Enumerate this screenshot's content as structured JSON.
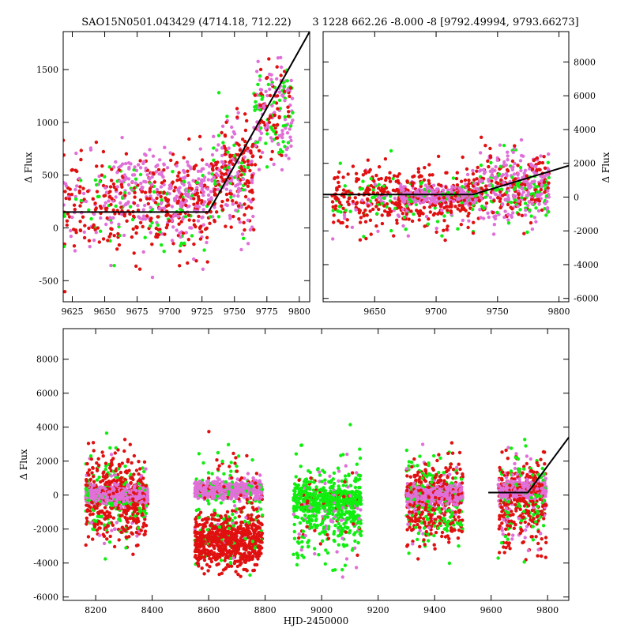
{
  "chart_data": [
    {
      "type": "scatter",
      "panel": "top-left",
      "title": "SAO15N0501.043429 (4714.18, 712.22)",
      "xlabel": "",
      "ylabel": "Δ Flux",
      "xlim": [
        9618,
        9808
      ],
      "ylim": [
        -700,
        1860
      ],
      "x_ticks": [
        9625,
        9650,
        9675,
        9700,
        9725,
        9750,
        9775,
        9800
      ],
      "y_ticks": [
        -500,
        0,
        500,
        1000,
        1500
      ],
      "y_axis_side": "left",
      "series_colors": {
        "red": "#e01010",
        "pink": "#e070d8",
        "green": "#10ee10"
      },
      "clusters": [
        {
          "x": [
            9618,
            9732
          ],
          "y_center": 200,
          "y_spread": 420,
          "red": 260,
          "pink": 120,
          "green": 60
        },
        {
          "x": [
            9655,
            9735
          ],
          "y_center": 350,
          "y_spread": 300,
          "red": 40,
          "pink": 180,
          "green": 20
        },
        {
          "x": [
            9732,
            9765
          ],
          "y_center": 500,
          "y_spread": 450,
          "red": 140,
          "pink": 110,
          "green": 40
        },
        {
          "x": [
            9765,
            9795
          ],
          "y_center": 1050,
          "y_spread": 450,
          "red": 60,
          "pink": 100,
          "green": 60
        }
      ],
      "model_line": {
        "x": [
          9618,
          9730,
          9808
        ],
        "y": [
          150,
          150,
          1860
        ]
      }
    },
    {
      "type": "scatter",
      "panel": "top-right",
      "title": "3 1228 662.26 -8.000 -8 [9792.49994, 9793.66273]",
      "xlabel": "",
      "ylabel": "Δ Flux",
      "xlim": [
        9608,
        9808
      ],
      "ylim": [
        -6200,
        9800
      ],
      "x_ticks": [
        9650,
        9700,
        9750,
        9800
      ],
      "y_ticks": [
        -6000,
        -4000,
        -2000,
        0,
        2000,
        4000,
        6000,
        8000
      ],
      "y_axis_side": "right",
      "series_colors": {
        "red": "#e01010",
        "pink": "#e070d8",
        "green": "#10ee10"
      },
      "clusters": [
        {
          "x": [
            9615,
            9735
          ],
          "y_center": -200,
          "y_spread": 1600,
          "red": 380,
          "pink": 60,
          "green": 90
        },
        {
          "x": [
            9670,
            9735
          ],
          "y_center": 100,
          "y_spread": 500,
          "red": 40,
          "pink": 280,
          "green": 20
        },
        {
          "x": [
            9735,
            9792
          ],
          "y_center": 600,
          "y_spread": 1800,
          "red": 150,
          "pink": 220,
          "green": 90
        }
      ],
      "model_line": {
        "x": [
          9608,
          9730,
          9808
        ],
        "y": [
          150,
          150,
          1860
        ]
      }
    },
    {
      "type": "scatter",
      "panel": "bottom",
      "title": "",
      "xlabel": "HJD-2450000",
      "ylabel": "Δ Flux",
      "xlim": [
        8085,
        9875
      ],
      "ylim": [
        -6200,
        9800
      ],
      "x_ticks": [
        8200,
        8400,
        8600,
        8800,
        9000,
        9200,
        9400,
        9600,
        9800
      ],
      "y_ticks": [
        -6000,
        -4000,
        -2000,
        0,
        2000,
        4000,
        6000,
        8000
      ],
      "y_axis_side": "left",
      "series_colors": {
        "red": "#e01010",
        "pink": "#e070d8",
        "green": "#10ee10"
      },
      "clusters": [
        {
          "x": [
            8165,
            8380
          ],
          "y_center": -200,
          "y_spread": 2200,
          "red": 420,
          "pink": 40,
          "green": 140
        },
        {
          "x": [
            8165,
            8385
          ],
          "y_center": 0,
          "y_spread": 450,
          "red": 20,
          "pink": 520,
          "green": 20
        },
        {
          "x": [
            8550,
            8790
          ],
          "y_center": -2700,
          "y_spread": 1400,
          "red": 620,
          "pink": 10,
          "green": 30
        },
        {
          "x": [
            8550,
            8790
          ],
          "y_center": 300,
          "y_spread": 450,
          "red": 30,
          "pink": 560,
          "green": 60
        },
        {
          "x": [
            8550,
            8790
          ],
          "y_center": -500,
          "y_spread": 3000,
          "red": 60,
          "pink": 10,
          "green": 80
        },
        {
          "x": [
            8900,
            9140
          ],
          "y_center": -900,
          "y_spread": 2400,
          "red": 30,
          "pink": 60,
          "green": 380
        },
        {
          "x": [
            8900,
            9140
          ],
          "y_center": -200,
          "y_spread": 600,
          "red": 20,
          "pink": 10,
          "green": 260
        },
        {
          "x": [
            9300,
            9500
          ],
          "y_center": -300,
          "y_spread": 2200,
          "red": 320,
          "pink": 60,
          "green": 180
        },
        {
          "x": [
            9300,
            9500
          ],
          "y_center": 0,
          "y_spread": 450,
          "red": 20,
          "pink": 480,
          "green": 20
        },
        {
          "x": [
            9625,
            9795
          ],
          "y_center": -400,
          "y_spread": 2400,
          "red": 300,
          "pink": 60,
          "green": 90
        },
        {
          "x": [
            9625,
            9795
          ],
          "y_center": 300,
          "y_spread": 500,
          "red": 30,
          "pink": 320,
          "green": 20
        }
      ],
      "model_line": {
        "x": [
          9590,
          9730,
          9875
        ],
        "y": [
          150,
          150,
          3400
        ]
      }
    }
  ]
}
